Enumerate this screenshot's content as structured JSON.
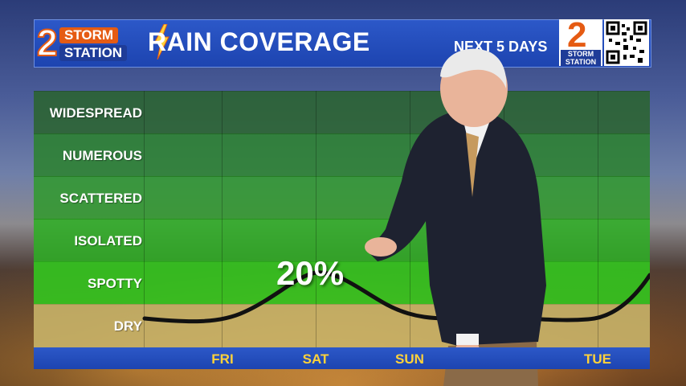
{
  "header": {
    "logo": {
      "numeral": "2",
      "word1": "STORM",
      "word2": "STATION"
    },
    "title": "RAIN COVERAGE",
    "subtitle": "NEXT 5 DAYS",
    "badge": {
      "numeral": "2",
      "word1": "STORM",
      "word2": "STATION"
    }
  },
  "chart": {
    "categories": [
      "WIDESPREAD",
      "NUMEROUS",
      "SCATTERED",
      "ISOLATED",
      "SPOTTY",
      "DRY"
    ],
    "days": [
      "FRI",
      "SAT",
      "SUN",
      "TUE"
    ],
    "peak_label": "20%"
  },
  "colors": {
    "header_blue": "#1d44b0",
    "logo_orange": "#e55b13",
    "day_yellow": "#ffd23a",
    "dry_band": "#c9b56a"
  }
}
